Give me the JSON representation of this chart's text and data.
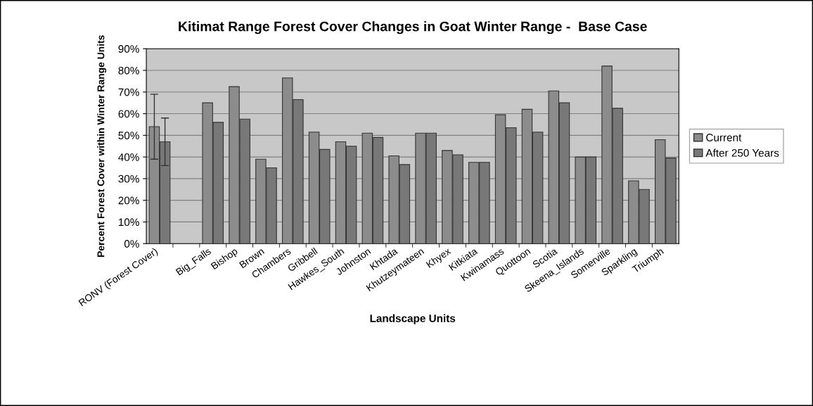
{
  "chart_data": {
    "type": "bar",
    "title": "Kitimat Range Forest Cover Changes in Goat Winter Range -  Base Case",
    "xlabel": "Landscape Units",
    "ylabel": "Percent Forest Cover within Winter Range Units",
    "categories": [
      "RONV (Forest Cover)",
      null,
      "Big_Falls",
      "Bishop",
      "Brown",
      "Chambers",
      "Gribbell",
      "Hawkes_South",
      "Johnston",
      "Khtada",
      "Khutzeymateen",
      "Khyex",
      "Kitkiata",
      "Kwinamass",
      "Quottoon",
      "Scotia",
      "Skeena_Islands",
      "Somerville",
      "Sparkling",
      "Triumph"
    ],
    "series": [
      {
        "name": "Current",
        "color": "#8c8c8c",
        "values": [
          54,
          null,
          65,
          72.5,
          39,
          76.5,
          51.5,
          47,
          51,
          40.5,
          51,
          43,
          37.5,
          59.5,
          62,
          70.5,
          40,
          82,
          29,
          48
        ],
        "errors": [
          [
            39,
            69
          ],
          null,
          null,
          null,
          null,
          null,
          null,
          null,
          null,
          null,
          null,
          null,
          null,
          null,
          null,
          null,
          null,
          null,
          null,
          null
        ]
      },
      {
        "name": "After 250 Years",
        "color": "#787878",
        "values": [
          47,
          null,
          56,
          57.5,
          35,
          66.5,
          43.5,
          45,
          49,
          36.5,
          51,
          41,
          37.5,
          53.5,
          51.5,
          65,
          40,
          62.5,
          25,
          39.5
        ],
        "errors": [
          [
            36,
            58
          ],
          null,
          null,
          null,
          null,
          null,
          null,
          null,
          null,
          null,
          null,
          null,
          null,
          null,
          null,
          null,
          null,
          null,
          null,
          null
        ]
      }
    ],
    "ylim": [
      0,
      90
    ],
    "yticks": [
      {
        "value": 0,
        "label": "0%"
      },
      {
        "value": 10,
        "label": "10%"
      },
      {
        "value": 20,
        "label": "20%"
      },
      {
        "value": 30,
        "label": "30%"
      },
      {
        "value": 40,
        "label": "40%"
      },
      {
        "value": 50,
        "label": "50%"
      },
      {
        "value": 60,
        "label": "60%"
      },
      {
        "value": 70,
        "label": "70%"
      },
      {
        "value": 80,
        "label": "80%"
      },
      {
        "value": 90,
        "label": "90%"
      }
    ],
    "grid": "y",
    "legend": "right"
  }
}
